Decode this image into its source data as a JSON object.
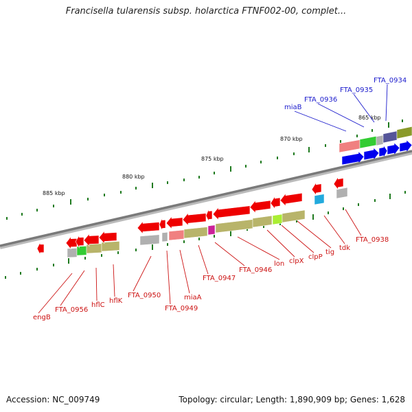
{
  "title": "Francisella tularensis subsp. holarctica FTNF002-00, complet...",
  "footer": {
    "accession": "Accession: NC_009749",
    "summary": "Topology: circular; Length: 1,890,909 bp; Genes: 1,628"
  },
  "colors": {
    "backbone": "#7a7a7a",
    "tick": "#1f7a1f",
    "forward_gene": "#0000ee",
    "reverse_gene": "#ee0000",
    "cog_olive": "#b8b46a",
    "cog_gray": "#b0b0b0",
    "cog_green": "#33cc33",
    "cog_salmon": "#f08080",
    "cog_magenta": "#cc2299",
    "cog_cyan": "#22aadd",
    "cog_purple": "#555599",
    "cog_darkolive": "#8a9a2a",
    "cog_yellowgreen": "#aaee33",
    "label_blue": "#1a1acc",
    "label_red": "#cc1111"
  },
  "scale_labels": [
    "865 kbp",
    "870 kbp",
    "875 kbp",
    "880 kbp",
    "885 kbp"
  ],
  "forward_labels": [
    "FTA_0934",
    "FTA_0935",
    "FTA_0936",
    "miaB"
  ],
  "reverse_labels": [
    "FTA_0938",
    "tdk",
    "tig",
    "clpP",
    "clpX",
    "lon",
    "FTA_0946",
    "FTA_0947",
    "miaA",
    "FTA_0949",
    "FTA_0950",
    "hflK",
    "hflC",
    "FTA_0956",
    "engB"
  ]
}
